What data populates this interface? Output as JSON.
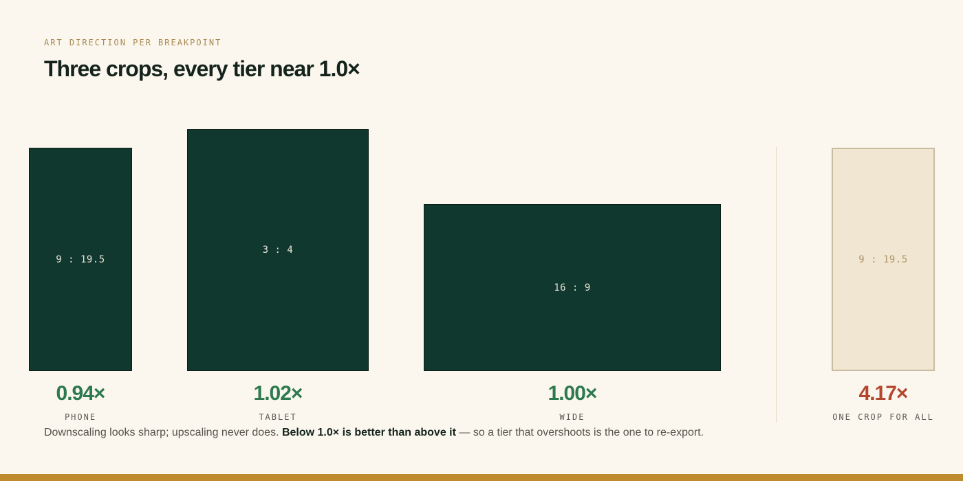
{
  "header": {
    "eyebrow": "ART DIRECTION PER BREAKPOINT",
    "title": "Three crops, every tier near 1.0×"
  },
  "tiers": [
    {
      "ratio": "9 : 19.5",
      "value": "0.94×",
      "label": "PHONE"
    },
    {
      "ratio": "3 : 4",
      "value": "1.02×",
      "label": "TABLET"
    },
    {
      "ratio": "16 : 9",
      "value": "1.00×",
      "label": "WIDE"
    }
  ],
  "comparison": {
    "ratio": "9 : 19.5",
    "value": "4.17×",
    "label": "ONE CROP FOR ALL"
  },
  "footnote": {
    "before": "Downscaling looks sharp; upscaling never does. ",
    "emphasis": "Below 1.0× is better than above it",
    "after": " — so a tier that overshoots is the one to re-export."
  },
  "colors": {
    "background": "#fbf7ee",
    "tile": "#10382e",
    "good": "#2d7a4e",
    "bad": "#b5472f",
    "accent_bar": "#bf8b2f"
  }
}
